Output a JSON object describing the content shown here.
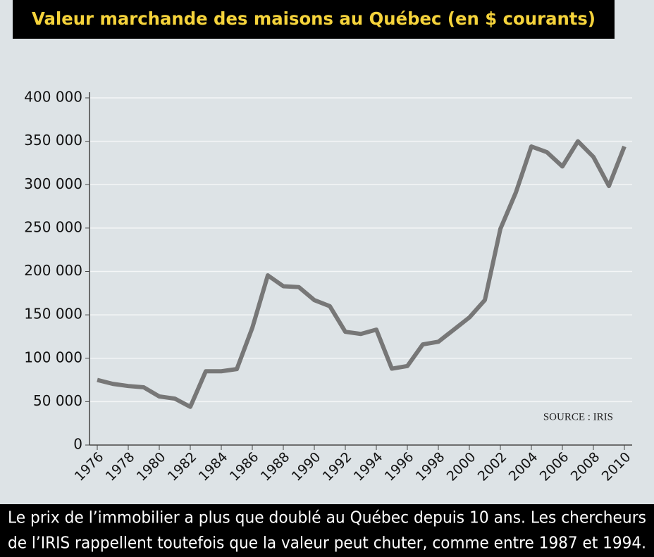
{
  "chart_data": {
    "type": "line",
    "title": "Valeur marchande des maisons au Québec (en $ courants)",
    "source": "SOURCE : IRIS",
    "caption": [
      "Le prix de l’immobilier a plus que doublé au Québec depuis 10 ans. Les chercheurs",
      "de l’IRIS rappellent toutefois que la valeur peut chuter, comme entre 1987 et 1994."
    ],
    "x": [
      1976,
      1977,
      1978,
      1979,
      1980,
      1981,
      1982,
      1983,
      1984,
      1985,
      1986,
      1987,
      1988,
      1989,
      1990,
      1991,
      1992,
      1993,
      1994,
      1995,
      1996,
      1997,
      1998,
      1999,
      2000,
      2001,
      2002,
      2003,
      2004,
      2005,
      2006,
      2007,
      2008,
      2009,
      2010
    ],
    "values": [
      75000,
      70500,
      68000,
      66500,
      56000,
      53500,
      44000,
      85000,
      85000,
      87500,
      135000,
      195500,
      183000,
      182000,
      167000,
      160000,
      130500,
      128000,
      133000,
      88000,
      91000,
      116000,
      119000,
      133000,
      147000,
      167000,
      249000,
      291000,
      344000,
      337500,
      321000,
      350000,
      332000,
      298500,
      344000
    ],
    "color": "#777777",
    "xlim": [
      1975.5,
      2010.5
    ],
    "xticks": [
      1976,
      1978,
      1980,
      1982,
      1984,
      1986,
      1988,
      1990,
      1992,
      1994,
      1996,
      1998,
      2000,
      2002,
      2004,
      2006,
      2008,
      2010
    ],
    "ylim": [
      0,
      400000
    ],
    "yticks": [
      0,
      {
        "value": 50000,
        "label": "50 000"
      },
      {
        "value": 100000,
        "label": "100 000"
      },
      {
        "value": 150000,
        "label": "150 000"
      },
      {
        "value": 200000,
        "label": "200 000"
      },
      {
        "value": 250000,
        "label": "250 000"
      },
      {
        "value": 300000,
        "label": "300 000"
      },
      {
        "value": 350000,
        "label": "350 000"
      },
      {
        "value": 400000,
        "label": "400 000"
      }
    ],
    "grid": true
  }
}
